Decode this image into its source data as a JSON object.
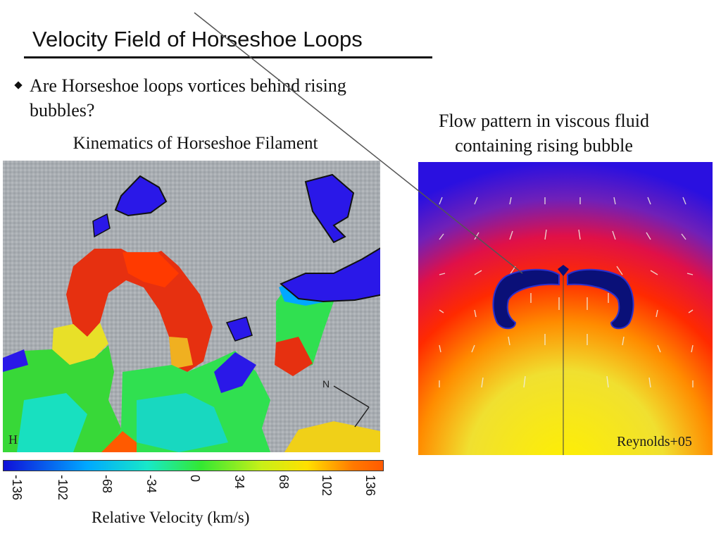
{
  "slide": {
    "title": "Velocity Field of Horseshoe Loops",
    "bullet": "Are Horseshoe loops vortices behind rising bubbles?",
    "left_caption": "Kinematics of Horseshoe Filament",
    "right_caption": "Flow pattern in viscous fluid containing rising bubble",
    "credit": "Reynolds+05",
    "left_image_corner_label": "H",
    "compass_label": "N"
  },
  "colorbar": {
    "label": "Relative Velocity (km/s)",
    "ticks": [
      "-136",
      "-102",
      "-68",
      "-34",
      "0",
      "34",
      "68",
      "102",
      "136"
    ],
    "colors": {
      "min": "#1010d8",
      "mid": "#33e833",
      "max": "#ff5a00"
    }
  }
}
